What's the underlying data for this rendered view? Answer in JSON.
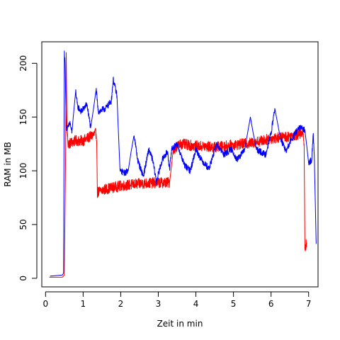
{
  "chart_data": {
    "type": "line",
    "title": "",
    "xlabel": "Zeit in min",
    "ylabel": "RAM in MB",
    "xlim": [
      -0.1,
      7.25
    ],
    "ylim": [
      -8,
      220
    ],
    "x_ticks": [
      0,
      1,
      2,
      3,
      4,
      5,
      6,
      7
    ],
    "y_ticks": [
      0,
      50,
      100,
      150,
      200
    ],
    "x_tick_labels": [
      "0",
      "1",
      "2",
      "3",
      "4",
      "5",
      "6",
      "7"
    ],
    "y_tick_labels": [
      "0",
      "50",
      "100",
      "150",
      "200"
    ],
    "grid": false,
    "legend": null,
    "series": [
      {
        "name": "red",
        "color": "#ff0000",
        "noise": 5,
        "points": [
          [
            0.1,
            1
          ],
          [
            0.45,
            1
          ],
          [
            0.5,
            3
          ],
          [
            0.53,
            100
          ],
          [
            0.55,
            210
          ],
          [
            0.57,
            140
          ],
          [
            0.6,
            125
          ],
          [
            0.8,
            128
          ],
          [
            1.0,
            128
          ],
          [
            1.2,
            132
          ],
          [
            1.35,
            135
          ],
          [
            1.36,
            128
          ],
          [
            1.38,
            80
          ],
          [
            1.6,
            83
          ],
          [
            2.0,
            86
          ],
          [
            2.5,
            88
          ],
          [
            3.0,
            89
          ],
          [
            3.3,
            89
          ],
          [
            3.4,
            120
          ],
          [
            3.6,
            125
          ],
          [
            4.0,
            123
          ],
          [
            4.5,
            122
          ],
          [
            5.0,
            124
          ],
          [
            5.5,
            126
          ],
          [
            6.0,
            130
          ],
          [
            6.5,
            132
          ],
          [
            6.85,
            135
          ],
          [
            6.88,
            125
          ],
          [
            6.9,
            30
          ],
          [
            6.95,
            32
          ]
        ]
      },
      {
        "name": "blue",
        "color": "#0000ff",
        "noise": 3,
        "points": [
          [
            0.12,
            2
          ],
          [
            0.45,
            3
          ],
          [
            0.48,
            5
          ],
          [
            0.5,
            210
          ],
          [
            0.52,
            200
          ],
          [
            0.55,
            140
          ],
          [
            0.6,
            140
          ],
          [
            0.65,
            145
          ],
          [
            0.7,
            135
          ],
          [
            0.8,
            175
          ],
          [
            0.85,
            160
          ],
          [
            0.95,
            155
          ],
          [
            1.1,
            162
          ],
          [
            1.2,
            140
          ],
          [
            1.35,
            175
          ],
          [
            1.4,
            155
          ],
          [
            1.6,
            158
          ],
          [
            1.75,
            165
          ],
          [
            1.8,
            185
          ],
          [
            1.9,
            170
          ],
          [
            1.98,
            100
          ],
          [
            2.1,
            98
          ],
          [
            2.2,
            100
          ],
          [
            2.35,
            135
          ],
          [
            2.45,
            110
          ],
          [
            2.6,
            95
          ],
          [
            2.75,
            120
          ],
          [
            2.85,
            110
          ],
          [
            2.95,
            90
          ],
          [
            3.1,
            110
          ],
          [
            3.25,
            118
          ],
          [
            3.3,
            100
          ],
          [
            3.35,
            120
          ],
          [
            3.5,
            125
          ],
          [
            3.7,
            105
          ],
          [
            3.85,
            100
          ],
          [
            4.0,
            120
          ],
          [
            4.15,
            110
          ],
          [
            4.35,
            102
          ],
          [
            4.55,
            125
          ],
          [
            4.75,
            115
          ],
          [
            4.95,
            120
          ],
          [
            5.1,
            110
          ],
          [
            5.3,
            120
          ],
          [
            5.45,
            150
          ],
          [
            5.6,
            120
          ],
          [
            5.85,
            115
          ],
          [
            6.0,
            135
          ],
          [
            6.1,
            158
          ],
          [
            6.25,
            130
          ],
          [
            6.4,
            118
          ],
          [
            6.55,
            130
          ],
          [
            6.65,
            135
          ],
          [
            6.75,
            140
          ],
          [
            6.9,
            138
          ],
          [
            7.0,
            108
          ],
          [
            7.08,
            110
          ],
          [
            7.12,
            135
          ],
          [
            7.15,
            115
          ],
          [
            7.2,
            32
          ]
        ]
      }
    ]
  }
}
